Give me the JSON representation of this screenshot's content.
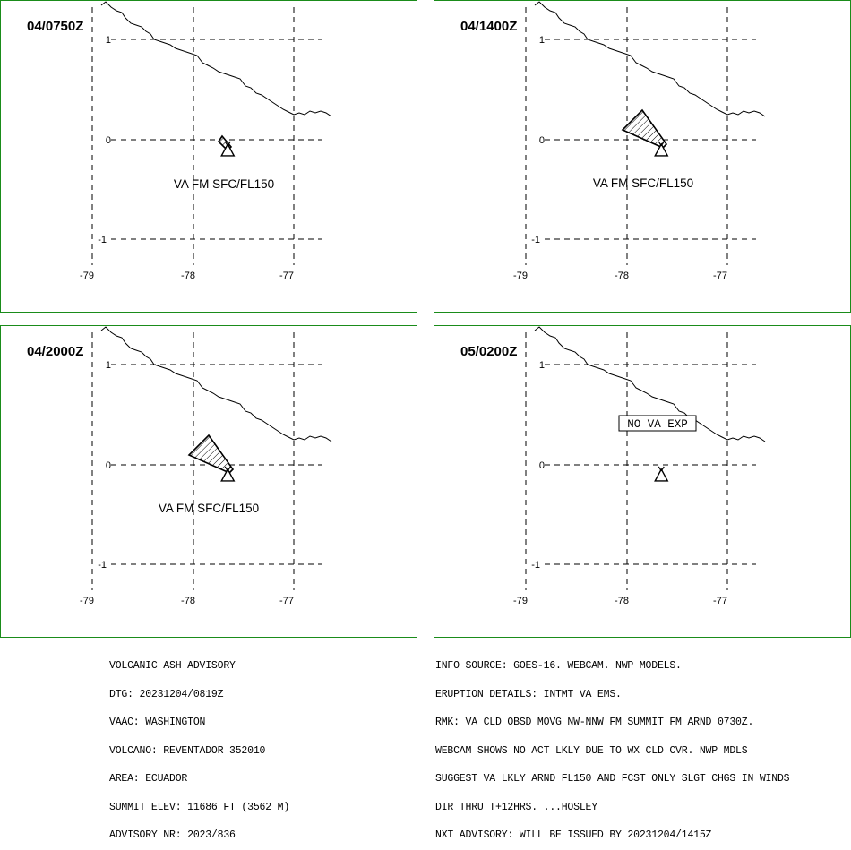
{
  "panels": [
    {
      "time_label": "04/0750Z",
      "va_label": "VA FM SFC/FL150",
      "plume": "small",
      "no_va_label": ""
    },
    {
      "time_label": "04/1400Z",
      "va_label": "VA FM SFC/FL150",
      "plume": "large",
      "no_va_label": ""
    },
    {
      "time_label": "04/2000Z",
      "va_label": "VA FM SFC/FL150",
      "plume": "large",
      "no_va_label": ""
    },
    {
      "time_label": "05/0200Z",
      "va_label": "",
      "plume": "none",
      "no_va_label": "NO VA EXP"
    }
  ],
  "axes": {
    "lon_ticks": [
      "-79",
      "-78",
      "-77"
    ],
    "lat_ticks": [
      "1",
      "0",
      "-1"
    ]
  },
  "volcano": {
    "name": "REVENTADOR",
    "lon": -77.66,
    "lat": -0.08
  },
  "advisory_left": [
    "VOLCANIC ASH ADVISORY",
    "DTG: 20231204/0819Z",
    "VAAC: WASHINGTON",
    "VOLCANO: REVENTADOR 352010",
    "AREA: ECUADOR",
    "SUMMIT ELEV: 11686 FT (3562 M)",
    "ADVISORY NR: 2023/836"
  ],
  "advisory_right": [
    "INFO SOURCE: GOES-16. WEBCAM. NWP MODELS.",
    "ERUPTION DETAILS: INTMT VA EMS.",
    "RMK: VA CLD OBSD MOVG NW-NNW FM SUMMIT FM ARND 0730Z.",
    "WEBCAM SHOWS NO ACT LKLY DUE TO WX CLD CVR. NWP MDLS",
    "SUGGEST VA LKLY ARND FL150 AND FCST ONLY SLGT CHGS IN WINDS",
    "DIR THRU T+12HRS. ...HOSLEY",
    "NXT ADVISORY: WILL BE ISSUED BY 20231204/1415Z"
  ],
  "colors": {
    "panel_border": "#1a8c1a"
  }
}
